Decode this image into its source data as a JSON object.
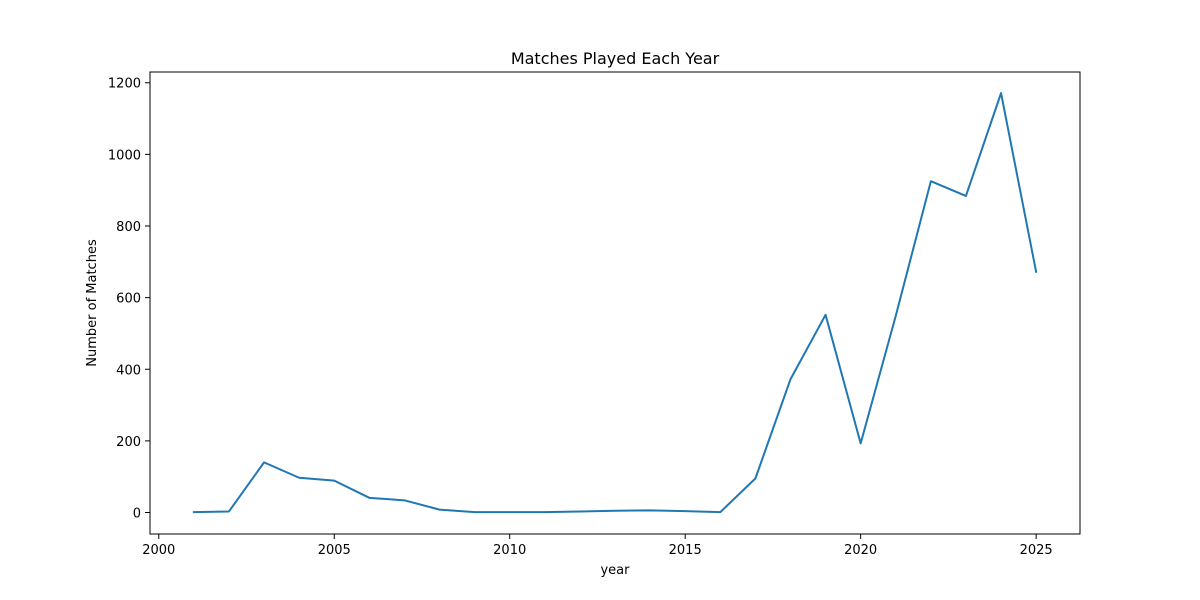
{
  "chart_data": {
    "type": "line",
    "title": "Matches Played Each Year",
    "xlabel": "year",
    "ylabel": "Number of Matches",
    "xlim": [
      1999.75,
      2026.25
    ],
    "ylim": [
      -60,
      1230
    ],
    "xticks": [
      2000,
      2005,
      2010,
      2015,
      2020,
      2025
    ],
    "yticks": [
      0,
      200,
      400,
      600,
      800,
      1000,
      1200
    ],
    "grid": false,
    "legend": "none",
    "series": [
      {
        "color": "#1f77b4",
        "x": [
          2001,
          2002,
          2003,
          2004,
          2005,
          2006,
          2007,
          2008,
          2009,
          2010,
          2011,
          2012,
          2013,
          2014,
          2015,
          2016,
          2017,
          2018,
          2019,
          2020,
          2021,
          2022,
          2023,
          2024,
          2025
        ],
        "y": [
          1,
          3,
          140,
          97,
          89,
          41,
          34,
          8,
          1,
          1,
          1,
          3,
          5,
          6,
          4,
          1,
          95,
          372,
          552,
          193,
          549,
          925,
          884,
          1171,
          672
        ]
      }
    ]
  }
}
